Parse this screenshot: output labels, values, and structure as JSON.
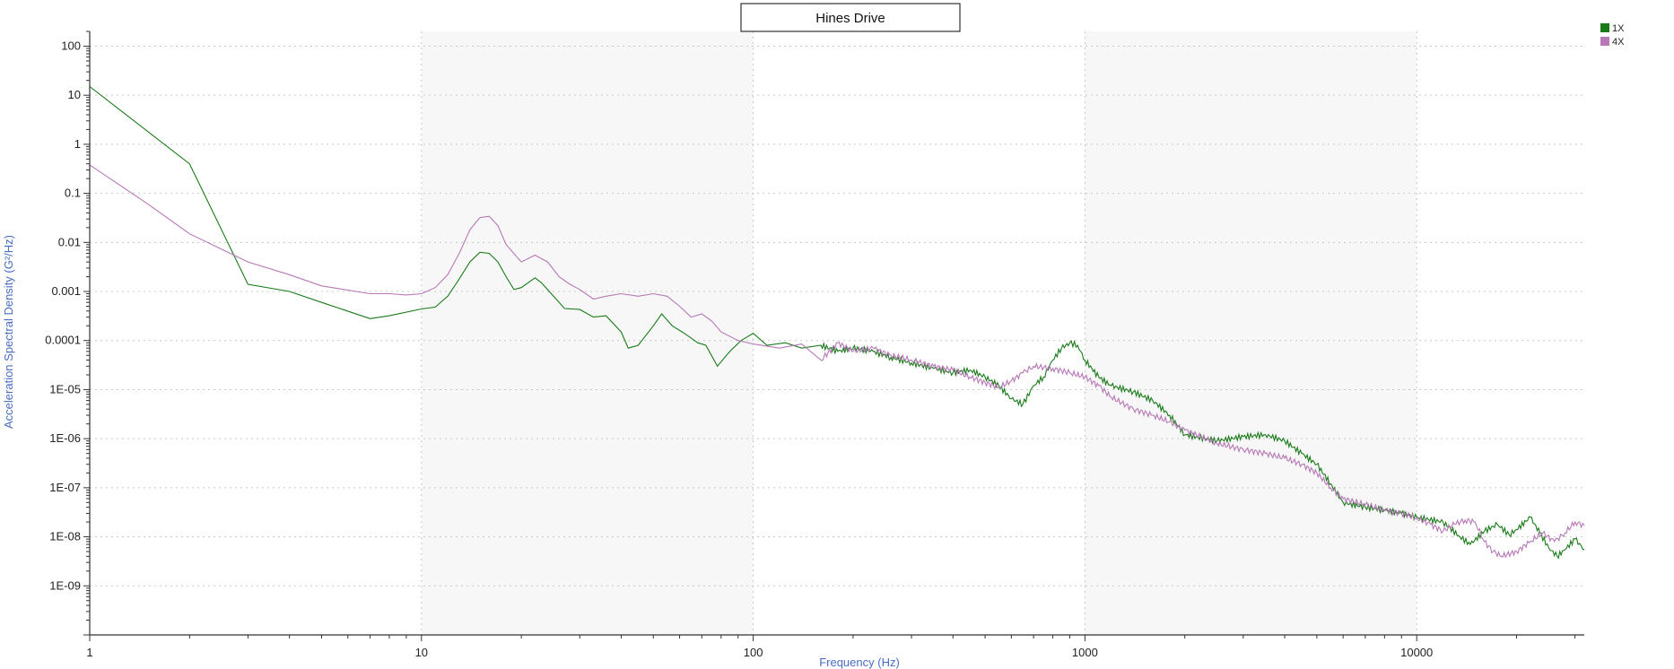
{
  "chart_data": {
    "type": "line",
    "title": "Hines Drive",
    "xlabel": "Frequency (Hz)",
    "ylabel": "Acceleration Spectral Density (G²/Hz)",
    "x_scale": "log",
    "y_scale": "log",
    "xlim": [
      1,
      32000
    ],
    "ylim": [
      1e-10,
      200
    ],
    "x_ticks": [
      {
        "value": 1,
        "label": "1"
      },
      {
        "value": 10,
        "label": "10"
      },
      {
        "value": 100,
        "label": "100"
      },
      {
        "value": 1000,
        "label": "1000"
      },
      {
        "value": 10000,
        "label": "10000"
      }
    ],
    "y_ticks": [
      {
        "value": 100,
        "label": "100"
      },
      {
        "value": 10,
        "label": "10"
      },
      {
        "value": 1,
        "label": "1"
      },
      {
        "value": 0.1,
        "label": "0.1"
      },
      {
        "value": 0.01,
        "label": "0.01"
      },
      {
        "value": 0.001,
        "label": "0.001"
      },
      {
        "value": 0.0001,
        "label": "0.0001"
      },
      {
        "value": 1e-05,
        "label": "1E-05"
      },
      {
        "value": 1e-06,
        "label": "1E-06"
      },
      {
        "value": 1e-07,
        "label": "1E-07"
      },
      {
        "value": 1e-08,
        "label": "1E-08"
      },
      {
        "value": 1e-09,
        "label": "1E-09"
      }
    ],
    "grid": true,
    "shaded_decades": [
      [
        10,
        100
      ],
      [
        1000,
        10000
      ]
    ],
    "legend_position": "top-right",
    "series": [
      {
        "name": "1X",
        "color": "#1a7a1a",
        "points": [
          [
            1,
            15
          ],
          [
            2,
            0.4
          ],
          [
            3,
            0.0014
          ],
          [
            4,
            0.001
          ],
          [
            5,
            0.0006
          ],
          [
            7,
            0.00028
          ],
          [
            8,
            0.00032
          ],
          [
            10,
            0.00044
          ],
          [
            11,
            0.00048
          ],
          [
            12,
            0.0008
          ],
          [
            13,
            0.0018
          ],
          [
            14,
            0.004
          ],
          [
            15,
            0.0063
          ],
          [
            16,
            0.006
          ],
          [
            17,
            0.004
          ],
          [
            18,
            0.002
          ],
          [
            19,
            0.0011
          ],
          [
            20,
            0.0012
          ],
          [
            22,
            0.0019
          ],
          [
            23,
            0.0015
          ],
          [
            25,
            0.0008
          ],
          [
            27,
            0.00045
          ],
          [
            30,
            0.00043
          ],
          [
            33,
            0.0003
          ],
          [
            36,
            0.00032
          ],
          [
            40,
            0.00015
          ],
          [
            42,
            7e-05
          ],
          [
            45,
            8e-05
          ],
          [
            50,
            0.0002
          ],
          [
            53,
            0.00035
          ],
          [
            57,
            0.0002
          ],
          [
            62,
            0.00014
          ],
          [
            68,
            9e-05
          ],
          [
            72,
            8e-05
          ],
          [
            78,
            3e-05
          ],
          [
            85,
            6e-05
          ],
          [
            92,
            0.0001
          ],
          [
            100,
            0.00014
          ],
          [
            110,
            8e-05
          ],
          [
            125,
            9e-05
          ],
          [
            140,
            7e-05
          ],
          [
            160,
            8e-05
          ],
          [
            180,
            6e-05
          ],
          [
            200,
            7e-05
          ],
          [
            230,
            6e-05
          ],
          [
            260,
            4.5e-05
          ],
          [
            300,
            3.5e-05
          ],
          [
            350,
            2.7e-05
          ],
          [
            400,
            2.2e-05
          ],
          [
            450,
            2.5e-05
          ],
          [
            500,
            1.8e-05
          ],
          [
            550,
            1.2e-05
          ],
          [
            600,
            6.5e-06
          ],
          [
            650,
            5e-06
          ],
          [
            700,
            1.2e-05
          ],
          [
            750,
            1.8e-05
          ],
          [
            800,
            4e-05
          ],
          [
            850,
            7e-05
          ],
          [
            900,
            9e-05
          ],
          [
            950,
            8e-05
          ],
          [
            1000,
            4e-05
          ],
          [
            1100,
            1.8e-05
          ],
          [
            1200,
            1.2e-05
          ],
          [
            1400,
            9e-06
          ],
          [
            1600,
            6e-06
          ],
          [
            1800,
            3e-06
          ],
          [
            2000,
            1.2e-06
          ],
          [
            2500,
            9e-07
          ],
          [
            3000,
            1.1e-06
          ],
          [
            3500,
            1.2e-06
          ],
          [
            4000,
            9e-07
          ],
          [
            4500,
            5e-07
          ],
          [
            5000,
            3e-07
          ],
          [
            5500,
            1.2e-07
          ],
          [
            6000,
            5e-08
          ],
          [
            7000,
            4e-08
          ],
          [
            8000,
            3.5e-08
          ],
          [
            9000,
            3e-08
          ],
          [
            10000,
            2.5e-08
          ],
          [
            12000,
            2e-08
          ],
          [
            13500,
            1e-08
          ],
          [
            14500,
            7e-09
          ],
          [
            16000,
            1.3e-08
          ],
          [
            17500,
            1.8e-08
          ],
          [
            19000,
            1.1e-08
          ],
          [
            20000,
            1.4e-08
          ],
          [
            22000,
            2.5e-08
          ],
          [
            23500,
            1.2e-08
          ],
          [
            25000,
            6e-09
          ],
          [
            26500,
            4e-09
          ],
          [
            28000,
            5.5e-09
          ],
          [
            30000,
            9e-09
          ],
          [
            32000,
            5.5e-09
          ]
        ]
      },
      {
        "name": "4X",
        "color": "#b678b6",
        "points": [
          [
            1,
            0.38
          ],
          [
            1.5,
            0.06
          ],
          [
            2,
            0.015
          ],
          [
            3,
            0.004
          ],
          [
            4,
            0.0022
          ],
          [
            5,
            0.0013
          ],
          [
            7,
            0.0009
          ],
          [
            8,
            0.0009
          ],
          [
            9,
            0.00085
          ],
          [
            10,
            0.0009
          ],
          [
            11,
            0.0012
          ],
          [
            12,
            0.0022
          ],
          [
            13,
            0.006
          ],
          [
            14,
            0.018
          ],
          [
            15,
            0.032
          ],
          [
            16,
            0.034
          ],
          [
            17,
            0.022
          ],
          [
            18,
            0.009
          ],
          [
            20,
            0.004
          ],
          [
            22,
            0.0055
          ],
          [
            24,
            0.004
          ],
          [
            26,
            0.002
          ],
          [
            28,
            0.0014
          ],
          [
            30,
            0.0011
          ],
          [
            33,
            0.0007
          ],
          [
            36,
            0.0008
          ],
          [
            40,
            0.0009
          ],
          [
            45,
            0.0008
          ],
          [
            50,
            0.0009
          ],
          [
            55,
            0.0008
          ],
          [
            60,
            0.0005
          ],
          [
            65,
            0.0003
          ],
          [
            70,
            0.00035
          ],
          [
            75,
            0.00025
          ],
          [
            80,
            0.00015
          ],
          [
            90,
            0.0001
          ],
          [
            100,
            8.5e-05
          ],
          [
            120,
            7e-05
          ],
          [
            140,
            8.5e-05
          ],
          [
            160,
            4e-05
          ],
          [
            180,
            9e-05
          ],
          [
            200,
            6e-05
          ],
          [
            230,
            7e-05
          ],
          [
            260,
            5e-05
          ],
          [
            300,
            4e-05
          ],
          [
            350,
            3e-05
          ],
          [
            400,
            2.5e-05
          ],
          [
            450,
            1.8e-05
          ],
          [
            500,
            1.4e-05
          ],
          [
            550,
            1.1e-05
          ],
          [
            600,
            1.5e-05
          ],
          [
            650,
            2.2e-05
          ],
          [
            700,
            3e-05
          ],
          [
            800,
            2.7e-05
          ],
          [
            900,
            2.2e-05
          ],
          [
            1000,
            1.8e-05
          ],
          [
            1100,
            1.2e-05
          ],
          [
            1200,
            7e-06
          ],
          [
            1400,
            4e-06
          ],
          [
            1600,
            3e-06
          ],
          [
            1800,
            2.2e-06
          ],
          [
            2000,
            1.5e-06
          ],
          [
            2500,
            8e-07
          ],
          [
            3000,
            6e-07
          ],
          [
            3500,
            5e-07
          ],
          [
            4000,
            4e-07
          ],
          [
            4500,
            3e-07
          ],
          [
            5000,
            2e-07
          ],
          [
            5500,
            1e-07
          ],
          [
            6000,
            6e-08
          ],
          [
            7000,
            4.5e-08
          ],
          [
            8000,
            3.5e-08
          ],
          [
            9000,
            3e-08
          ],
          [
            10000,
            2.4e-08
          ],
          [
            11000,
            1.8e-08
          ],
          [
            12000,
            1.3e-08
          ],
          [
            13000,
            1.8e-08
          ],
          [
            14000,
            2.2e-08
          ],
          [
            15000,
            2e-08
          ],
          [
            16000,
            8e-09
          ],
          [
            17000,
            5e-09
          ],
          [
            18000,
            4e-09
          ],
          [
            20000,
            5e-09
          ],
          [
            22000,
            8e-09
          ],
          [
            24000,
            1.2e-08
          ],
          [
            26000,
            8e-09
          ],
          [
            28000,
            1.2e-08
          ],
          [
            30000,
            2e-08
          ],
          [
            32000,
            1.7e-08
          ]
        ]
      }
    ]
  }
}
